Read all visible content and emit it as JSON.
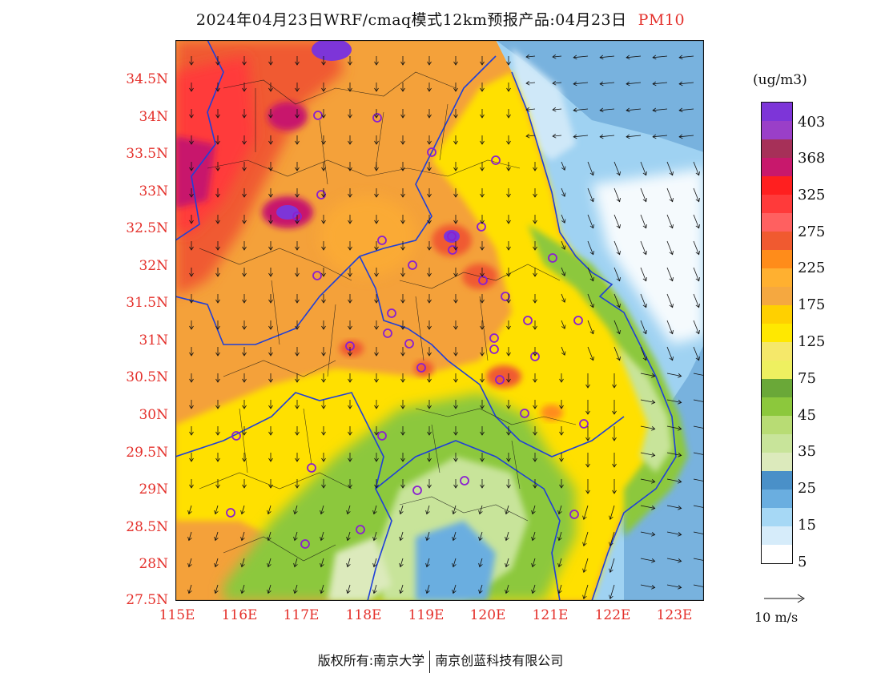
{
  "title": {
    "text": "2024年04月23日WRF/cmaq模式12km预报产品:04月23日",
    "species": "PM10"
  },
  "map": {
    "lon_labels": [
      "115E",
      "116E",
      "117E",
      "118E",
      "119E",
      "120E",
      "121E",
      "122E",
      "123E"
    ],
    "lat_labels": [
      "34.5N",
      "34N",
      "33.5N",
      "33N",
      "32.5N",
      "32N",
      "31.5N",
      "31N",
      "30.5N",
      "30N",
      "29.5N",
      "29N",
      "28.5N",
      "28N",
      "27.5N"
    ],
    "lon_range": [
      115,
      123.5
    ],
    "lat_range": [
      27.5,
      34.9
    ],
    "land_color": "#f4a13a",
    "sea_color": "#8fc9ef",
    "border_color": "#1f3fd8"
  },
  "legend": {
    "unit": "(ug/m3)",
    "labels": [
      "403",
      "368",
      "325",
      "275",
      "225",
      "175",
      "125",
      "75",
      "45",
      "35",
      "25",
      "15",
      "5"
    ],
    "colors": [
      "#7d35d8",
      "#9a3fc8",
      "#a63058",
      "#c8186c",
      "#ff1f1f",
      "#ff3a3a",
      "#ff6060",
      "#f05a30",
      "#ff8c1a",
      "#ffb030",
      "#f5a840",
      "#ffd000",
      "#ffe800",
      "#f5e86a",
      "#eef060",
      "#6aa838",
      "#8cc83c",
      "#b8dc74",
      "#c8e49a",
      "#dceabc",
      "#4a90c8",
      "#6aaee0",
      "#a6d8f5",
      "#d6ecfa",
      "#ffffff"
    ]
  },
  "wind": {
    "scale_label": "10 m/s"
  },
  "footer": {
    "copyright": "版权所有:南京大学",
    "company": "南京创蓝科技有限公司"
  }
}
